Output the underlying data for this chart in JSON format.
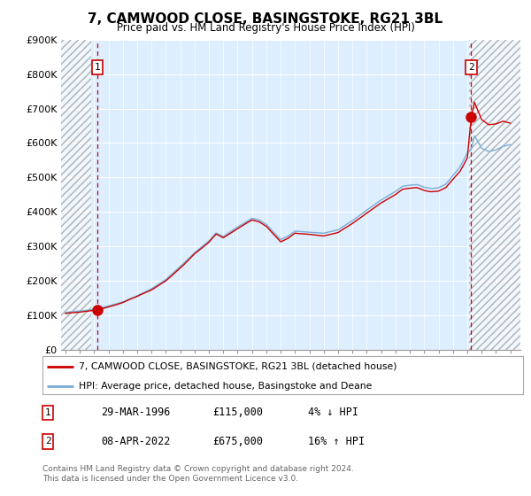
{
  "title": "7, CAMWOOD CLOSE, BASINGSTOKE, RG21 3BL",
  "subtitle": "Price paid vs. HM Land Registry's House Price Index (HPI)",
  "ylim": [
    0,
    900000
  ],
  "yticks": [
    0,
    100000,
    200000,
    300000,
    400000,
    500000,
    600000,
    700000,
    800000,
    900000
  ],
  "ytick_labels": [
    "£0",
    "£100K",
    "£200K",
    "£300K",
    "£400K",
    "£500K",
    "£600K",
    "£700K",
    "£800K",
    "£900K"
  ],
  "xlim_start": 1993.7,
  "xlim_end": 2025.7,
  "hatch_left_end": 1995.8,
  "hatch_right_start": 2022.15,
  "transaction1_x": 1996.24,
  "transaction1_y": 115000,
  "transaction2_x": 2022.27,
  "transaction2_y": 675000,
  "transaction1_label": "1",
  "transaction2_label": "2",
  "line_color_red": "#cc0000",
  "line_color_blue": "#7aaed6",
  "bg_color": "#ddeeff",
  "grid_color": "#ffffff",
  "legend1_text": "7, CAMWOOD CLOSE, BASINGSTOKE, RG21 3BL (detached house)",
  "legend2_text": "HPI: Average price, detached house, Basingstoke and Deane",
  "table_row1": [
    "1",
    "29-MAR-1996",
    "£115,000",
    "4% ↓ HPI"
  ],
  "table_row2": [
    "2",
    "08-APR-2022",
    "£675,000",
    "16% ↑ HPI"
  ],
  "footnote": "Contains HM Land Registry data © Crown copyright and database right 2024.\nThis data is licensed under the Open Government Licence v3.0."
}
